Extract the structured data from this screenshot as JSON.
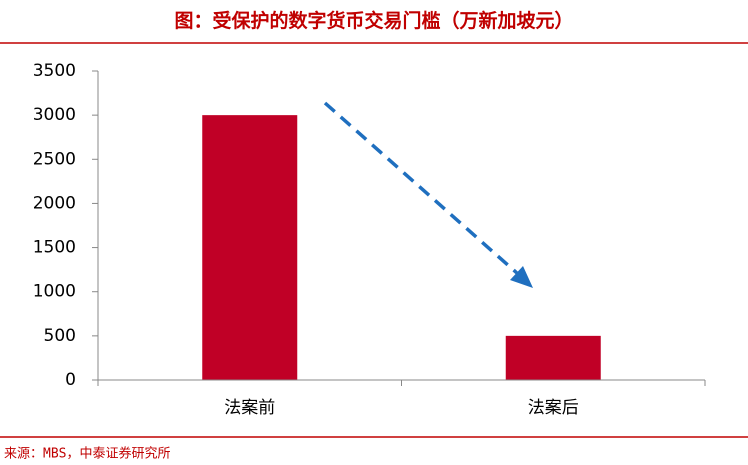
{
  "chart_data": {
    "type": "bar",
    "title": "图：受保护的数字货币交易门槛（万新加坡元）",
    "categories": [
      "法案前",
      "法案后"
    ],
    "values": [
      3000,
      500
    ],
    "color": "#c00026",
    "ylim": [
      0,
      3500
    ],
    "yticks": [
      0,
      500,
      1000,
      1500,
      2000,
      2500,
      3000,
      3500
    ],
    "source": "来源：MBS，中泰证券研究所"
  }
}
